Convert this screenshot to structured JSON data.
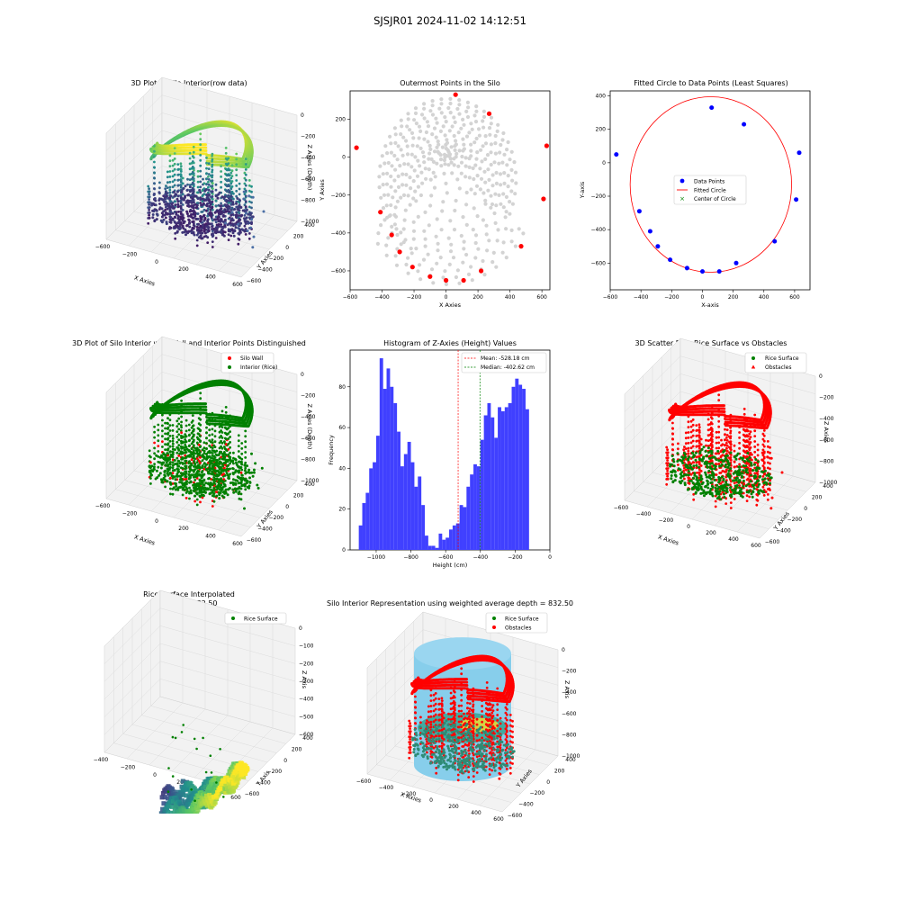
{
  "suptitle": "SJSJR01 2024-11-02 14:12:51",
  "colors": {
    "gray": "#d3d3d3",
    "red": "#ff0000",
    "blue": "#0000ff",
    "green": "#008000",
    "hist": "#4040ff",
    "cyl": "#87ceeb"
  },
  "panels": {
    "p1": {
      "title": "3D Plot of Silo Interior(row data)",
      "xlabel": "X Axies",
      "ylabel": "Y Axies",
      "zlabel": "Z Axies (Depth)",
      "xticks": [
        "−600",
        "−200",
        "0",
        "200",
        "400",
        "600"
      ],
      "yticks": [
        "400",
        "200",
        "0",
        "−200",
        "−400",
        "−600"
      ],
      "zticks": [
        "0",
        "−200",
        "−400",
        "−600",
        "−800",
        "−1000"
      ]
    },
    "p2": {
      "title": "Outermost Points in the Silo",
      "xlabel": "X Axies",
      "ylabel": "Y Axies"
    },
    "p3": {
      "title": "Fitted Circle to Data Points (Least Squares)",
      "xlabel": "X-axis",
      "ylabel": "Y-axis",
      "legend": [
        "Data Points",
        "Fitted Circle",
        "Center of Circle"
      ]
    },
    "p4": {
      "title": "3D Plot of Silo Interior with Wall and Interior Points Distinguished",
      "xlabel": "X Axies",
      "ylabel": "Y Axies",
      "zlabel": "Z Axies (Depth)",
      "legend": [
        "Silo Wall",
        "Interior (Rice)"
      ],
      "xticks": [
        "−600",
        "−200",
        "0",
        "200",
        "400",
        "600"
      ],
      "yticks": [
        "400",
        "200",
        "0",
        "−200",
        "−400",
        "−600"
      ],
      "zticks": [
        "0",
        "−200",
        "−400",
        "−600",
        "−800",
        "−1000"
      ]
    },
    "p5": {
      "title": "Histogram of Z-Axies (Height) Values",
      "xlabel": "Height (cm)",
      "ylabel": "Frequency",
      "legend": [
        "Mean: -528.18 cm",
        "Median: -402.62 cm"
      ]
    },
    "p6": {
      "title": "3D Scatter Plot: Rice Surface vs Obstacles",
      "xlabel": "X Axies",
      "ylabel": "Y Axies",
      "zlabel": "Z Axies",
      "legend": [
        "Rice Surface",
        "Obstacles"
      ],
      "xticks": [
        "−600",
        "−400",
        "−200",
        "0",
        "200",
        "400",
        "600"
      ],
      "yticks": [
        "400",
        "200",
        "0",
        "−200",
        "−400",
        "−600"
      ],
      "zticks": [
        "0",
        "−200",
        "−400",
        "−600",
        "−800",
        "−1000"
      ]
    },
    "p7": {
      "title": "Rice Surface Interpolated\ndepth = 832.50",
      "xlabel": "X Axis",
      "ylabel": "Y Axis",
      "zlabel": "Z Axis",
      "legend": [
        "Rice Surface"
      ],
      "xticks": [
        "−400",
        "−200",
        "0",
        "200",
        "400",
        "600"
      ],
      "yticks": [
        "400",
        "200",
        "0",
        "−200",
        "−400",
        "−600"
      ],
      "zticks": [
        "0",
        "−100",
        "−200",
        "−300",
        "−400",
        "−500",
        "−600"
      ]
    },
    "p8": {
      "title": "Silo Interior Representation using weighted average depth = 832.50",
      "xlabel": "X Axies",
      "ylabel": "Y Axies",
      "zlabel": "Z Axis",
      "legend": [
        "Rice Surface",
        "Obstacles"
      ],
      "xticks": [
        "−600",
        "−400",
        "−200",
        "0",
        "200",
        "400",
        "600"
      ],
      "yticks": [
        "400",
        "200",
        "0",
        "−200",
        "−400",
        "−600"
      ],
      "zticks": [
        "0",
        "−200",
        "−400",
        "−600",
        "−800",
        "−1000"
      ]
    }
  },
  "chart_data": [
    {
      "type": "scatter",
      "title": "3D Plot of Silo Interior(row data)",
      "xlim": [
        -600,
        600
      ],
      "ylim": [
        -600,
        400
      ],
      "zlim": [
        -1000,
        0
      ]
    },
    {
      "type": "scatter",
      "title": "Outermost Points in the Silo",
      "xlim": [
        -600,
        650
      ],
      "ylim": [
        -700,
        350
      ],
      "xticks": [
        -600,
        -400,
        -200,
        0,
        200,
        400,
        600
      ],
      "yticks": [
        -600,
        -400,
        -200,
        0,
        200
      ],
      "outer_points": [
        [
          -560,
          50
        ],
        [
          -410,
          -290
        ],
        [
          -340,
          -410
        ],
        [
          -290,
          -500
        ],
        [
          -210,
          -580
        ],
        [
          -100,
          -630
        ],
        [
          0,
          -650
        ],
        [
          110,
          -650
        ],
        [
          220,
          -600
        ],
        [
          470,
          -470
        ],
        [
          610,
          -220
        ],
        [
          630,
          60
        ],
        [
          270,
          230
        ],
        [
          60,
          330
        ]
      ]
    },
    {
      "type": "scatter",
      "title": "Fitted Circle to Data Points (Least Squares)",
      "xlim": [
        -600,
        700
      ],
      "ylim": [
        -760,
        430
      ],
      "xticks": [
        -600,
        -400,
        -200,
        0,
        200,
        400,
        600
      ],
      "yticks": [
        -600,
        -400,
        -200,
        0,
        200,
        400
      ],
      "points": [
        [
          -560,
          50
        ],
        [
          -410,
          -290
        ],
        [
          -340,
          -410
        ],
        [
          -290,
          -500
        ],
        [
          -210,
          -580
        ],
        [
          -100,
          -630
        ],
        [
          0,
          -650
        ],
        [
          110,
          -650
        ],
        [
          220,
          -600
        ],
        [
          470,
          -470
        ],
        [
          610,
          -220
        ],
        [
          630,
          60
        ],
        [
          270,
          230
        ],
        [
          60,
          330
        ]
      ],
      "circle": {
        "cx": 55,
        "cy": -130,
        "r": 525
      }
    },
    {
      "type": "scatter",
      "title": "3D Plot of Silo Interior with Wall and Interior Points Distinguished",
      "xlim": [
        -600,
        600
      ],
      "ylim": [
        -600,
        400
      ],
      "zlim": [
        -1000,
        0
      ]
    },
    {
      "type": "bar",
      "title": "Histogram of Z-Axies (Height) Values",
      "xlim": [
        -1150,
        0
      ],
      "ylim": [
        0,
        98
      ],
      "xticks": [
        -1000,
        -800,
        -600,
        -400,
        -200,
        0
      ],
      "yticks": [
        0,
        20,
        40,
        60,
        80
      ],
      "bin_start": -1100,
      "bin_width": 20,
      "values": [
        12,
        23,
        28,
        40,
        43,
        56,
        94,
        79,
        89,
        80,
        72,
        58,
        41,
        47,
        53,
        43,
        31,
        36,
        22,
        7,
        2,
        2,
        1,
        8,
        5,
        6,
        10,
        12,
        13,
        22,
        21,
        31,
        37,
        42,
        41,
        54,
        66,
        72,
        65,
        55,
        70,
        68,
        70,
        72,
        80,
        84,
        81,
        79,
        69
      ],
      "mean": -528.18,
      "median": -402.62
    },
    {
      "type": "scatter",
      "title": "3D Scatter Plot: Rice Surface vs Obstacles",
      "xlim": [
        -600,
        600
      ],
      "ylim": [
        -600,
        400
      ],
      "zlim": [
        -1000,
        0
      ]
    },
    {
      "type": "scatter",
      "title": "Rice Surface Interpolated",
      "xlim": [
        -400,
        600
      ],
      "ylim": [
        -600,
        400
      ],
      "zlim": [
        -600,
        0
      ]
    },
    {
      "type": "scatter",
      "title": "Silo Interior Representation using weighted average depth = 832.50",
      "xlim": [
        -600,
        600
      ],
      "ylim": [
        -600,
        400
      ],
      "zlim": [
        -1000,
        0
      ]
    }
  ]
}
